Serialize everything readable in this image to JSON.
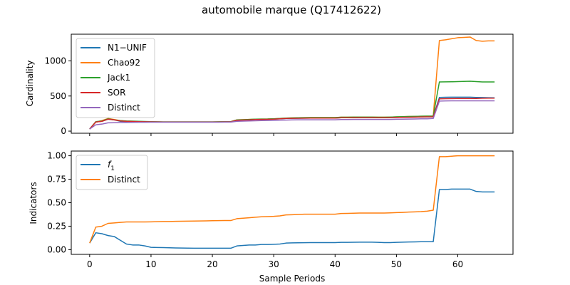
{
  "chart_data": {
    "title": "automobile marque (Q17412622)",
    "xlabel": "Sample Periods",
    "x": [
      0,
      1,
      2,
      3,
      4,
      5,
      6,
      7,
      8,
      9,
      10,
      11,
      12,
      13,
      14,
      15,
      16,
      17,
      18,
      19,
      20,
      21,
      22,
      23,
      24,
      25,
      26,
      27,
      28,
      29,
      30,
      31,
      32,
      33,
      34,
      35,
      36,
      37,
      38,
      39,
      40,
      41,
      42,
      43,
      44,
      45,
      46,
      47,
      48,
      49,
      50,
      51,
      52,
      53,
      54,
      55,
      56,
      57,
      58,
      59,
      60,
      61,
      62,
      63,
      64,
      65,
      66
    ],
    "xticks": [
      0,
      10,
      20,
      30,
      40,
      50,
      60
    ],
    "xlim": [
      -3,
      69
    ],
    "panels": [
      {
        "type": "line",
        "ylabel": "Cardinality",
        "ylim": [
          -30,
          1380
        ],
        "yticks": [
          0,
          500,
          1000
        ],
        "legend": "upper-left",
        "series": [
          {
            "name": "N1−UNIF",
            "color": "#1f77b4",
            "values": [
              30,
              130,
              140,
              170,
              160,
              140,
              135,
              135,
              133,
              132,
              131,
              130,
              130,
              130,
              130,
              130,
              130,
              130,
              130,
              130,
              130,
              130,
              132,
              132,
              155,
              158,
              160,
              165,
              167,
              168,
              170,
              175,
              180,
              182,
              183,
              184,
              185,
              185,
              185,
              185,
              185,
              190,
              190,
              191,
              192,
              192,
              192,
              190,
              190,
              192,
              195,
              197,
              198,
              200,
              202,
              203,
              205,
              480,
              482,
              483,
              483,
              483,
              483,
              480,
              478,
              476,
              475
            ]
          },
          {
            "name": "Chao92",
            "color": "#ff7f0e",
            "values": [
              30,
              130,
              150,
              180,
              165,
              150,
              140,
              138,
              135,
              133,
              132,
              131,
              130,
              130,
              130,
              130,
              130,
              130,
              130,
              130,
              130,
              132,
              135,
              135,
              160,
              163,
              167,
              170,
              172,
              173,
              176,
              180,
              185,
              188,
              190,
              192,
              193,
              193,
              193,
              193,
              193,
              198,
              198,
              200,
              200,
              200,
              200,
              198,
              198,
              200,
              203,
              206,
              208,
              210,
              212,
              214,
              215,
              1290,
              1300,
              1315,
              1330,
              1335,
              1340,
              1290,
              1280,
              1285,
              1285
            ]
          },
          {
            "name": "Jack1",
            "color": "#2ca02c",
            "values": [
              30,
              135,
              145,
              175,
              160,
              150,
              145,
              142,
              140,
              137,
              135,
              133,
              132,
              132,
              132,
              132,
              132,
              132,
              132,
              132,
              132,
              133,
              135,
              135,
              160,
              163,
              166,
              170,
              172,
              173,
              176,
              180,
              185,
              188,
              190,
              192,
              193,
              193,
              193,
              193,
              193,
              198,
              198,
              200,
              200,
              200,
              200,
              198,
              198,
              200,
              203,
              206,
              208,
              210,
              212,
              214,
              215,
              700,
              702,
              703,
              705,
              708,
              710,
              705,
              700,
              700,
              700
            ]
          },
          {
            "name": "SOR",
            "color": "#d62728",
            "values": [
              30,
              130,
              140,
              170,
              160,
              145,
              140,
              138,
              135,
              133,
              132,
              131,
              130,
              130,
              130,
              130,
              130,
              130,
              130,
              130,
              130,
              130,
              132,
              132,
              155,
              158,
              160,
              165,
              167,
              168,
              170,
              175,
              180,
              182,
              183,
              184,
              185,
              185,
              185,
              185,
              185,
              190,
              190,
              191,
              192,
              192,
              192,
              190,
              190,
              192,
              195,
              197,
              198,
              200,
              202,
              203,
              205,
              460,
              462,
              463,
              464,
              465,
              465,
              465,
              468,
              470,
              470
            ]
          },
          {
            "name": "Distinct",
            "color": "#9467bd",
            "values": [
              30,
              90,
              100,
              118,
              120,
              122,
              124,
              125,
              126,
              126,
              127,
              127,
              127,
              127,
              127,
              127,
              127,
              127,
              127,
              127,
              127,
              127,
              128,
              128,
              140,
              142,
              145,
              148,
              150,
              151,
              153,
              156,
              158,
              160,
              161,
              162,
              162,
              162,
              162,
              162,
              162,
              165,
              165,
              166,
              167,
              167,
              167,
              166,
              166,
              167,
              169,
              171,
              172,
              173,
              175,
              176,
              180,
              428,
              430,
              431,
              432,
              432,
              432,
              432,
              432,
              432,
              432
            ]
          }
        ]
      },
      {
        "type": "line",
        "ylabel": "Indicators",
        "ylim": [
          -0.05,
          1.05
        ],
        "yticks": [
          "0.00",
          "0.25",
          "0.50",
          "0.75",
          "1.00"
        ],
        "legend": "upper-left",
        "series": [
          {
            "name": "f",
            "name_sub": "1",
            "color": "#1f77b4",
            "values": [
              0.07,
              0.18,
              0.17,
              0.15,
              0.14,
              0.1,
              0.06,
              0.05,
              0.05,
              0.04,
              0.025,
              0.023,
              0.022,
              0.02,
              0.018,
              0.017,
              0.016,
              0.015,
              0.015,
              0.015,
              0.015,
              0.015,
              0.015,
              0.015,
              0.04,
              0.045,
              0.05,
              0.05,
              0.055,
              0.055,
              0.057,
              0.06,
              0.07,
              0.072,
              0.073,
              0.074,
              0.075,
              0.075,
              0.075,
              0.075,
              0.075,
              0.078,
              0.078,
              0.079,
              0.08,
              0.08,
              0.08,
              0.078,
              0.075,
              0.075,
              0.078,
              0.08,
              0.082,
              0.083,
              0.085,
              0.085,
              0.085,
              0.64,
              0.64,
              0.645,
              0.645,
              0.645,
              0.645,
              0.62,
              0.615,
              0.615,
              0.615
            ]
          },
          {
            "name": "Distinct",
            "color": "#ff7f0e",
            "values": [
              0.07,
              0.24,
              0.25,
              0.28,
              0.285,
              0.29,
              0.295,
              0.295,
              0.295,
              0.295,
              0.296,
              0.298,
              0.3,
              0.3,
              0.302,
              0.303,
              0.304,
              0.305,
              0.306,
              0.307,
              0.308,
              0.309,
              0.31,
              0.31,
              0.33,
              0.335,
              0.34,
              0.345,
              0.35,
              0.352,
              0.355,
              0.36,
              0.37,
              0.372,
              0.375,
              0.378,
              0.378,
              0.378,
              0.378,
              0.378,
              0.378,
              0.385,
              0.386,
              0.388,
              0.39,
              0.39,
              0.39,
              0.39,
              0.39,
              0.392,
              0.395,
              0.397,
              0.4,
              0.402,
              0.405,
              0.41,
              0.42,
              0.99,
              0.99,
              0.995,
              1.0,
              1.0,
              1.0,
              1.0,
              1.0,
              1.0,
              1.0
            ]
          }
        ]
      }
    ]
  }
}
